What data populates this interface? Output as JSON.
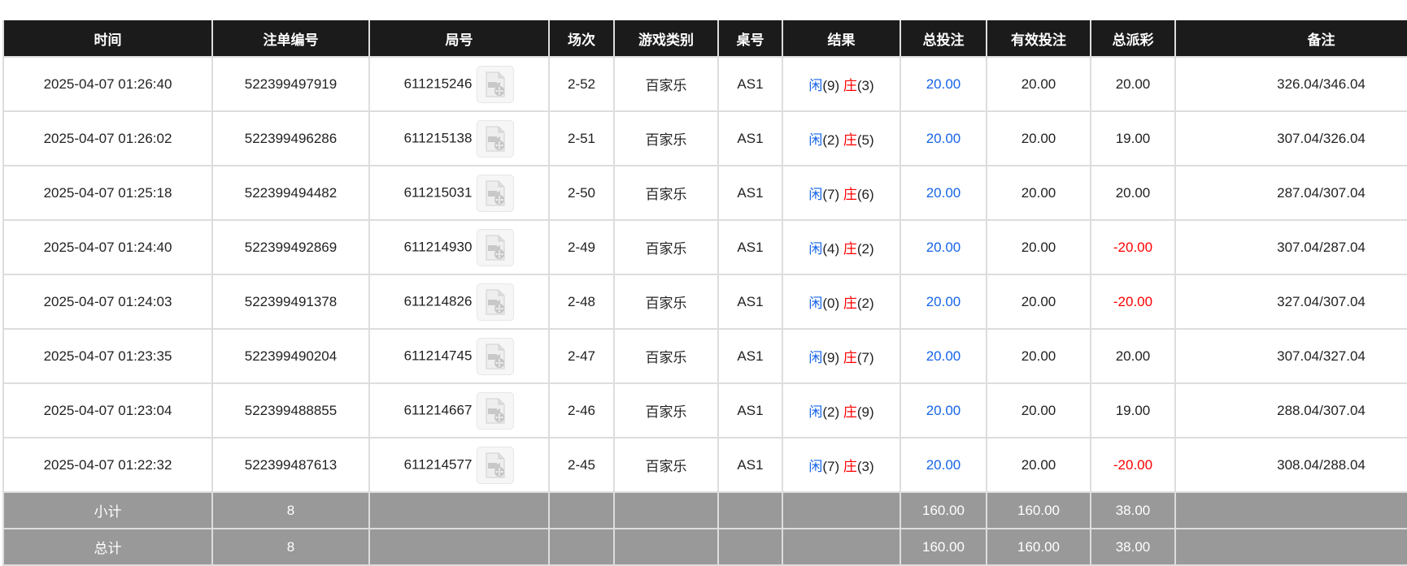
{
  "columns": [
    "时间",
    "注单编号",
    "局号",
    "场次",
    "游戏类别",
    "桌号",
    "结果",
    "总投注",
    "有效投注",
    "总派彩",
    "备注"
  ],
  "rows": [
    {
      "time": "2025-04-07 01:26:40",
      "bet_id": "522399497919",
      "round": "611215246",
      "shoe": "2-52",
      "game": "百家乐",
      "table": "AS1",
      "player_label": "闲",
      "player": "(9)",
      "banker_label": "庄",
      "banker": "(3)",
      "total_bet": "20.00",
      "valid_bet": "20.00",
      "payout": "20.00",
      "payout_negative": false,
      "remark": "326.04/346.04"
    },
    {
      "time": "2025-04-07 01:26:02",
      "bet_id": "522399496286",
      "round": "611215138",
      "shoe": "2-51",
      "game": "百家乐",
      "table": "AS1",
      "player_label": "闲",
      "player": "(2)",
      "banker_label": "庄",
      "banker": "(5)",
      "total_bet": "20.00",
      "valid_bet": "20.00",
      "payout": "19.00",
      "payout_negative": false,
      "remark": "307.04/326.04"
    },
    {
      "time": "2025-04-07 01:25:18",
      "bet_id": "522399494482",
      "round": "611215031",
      "shoe": "2-50",
      "game": "百家乐",
      "table": "AS1",
      "player_label": "闲",
      "player": "(7)",
      "banker_label": "庄",
      "banker": "(6)",
      "total_bet": "20.00",
      "valid_bet": "20.00",
      "payout": "20.00",
      "payout_negative": false,
      "remark": "287.04/307.04"
    },
    {
      "time": "2025-04-07 01:24:40",
      "bet_id": "522399492869",
      "round": "611214930",
      "shoe": "2-49",
      "game": "百家乐",
      "table": "AS1",
      "player_label": "闲",
      "player": "(4)",
      "banker_label": "庄",
      "banker": "(2)",
      "total_bet": "20.00",
      "valid_bet": "20.00",
      "payout": "-20.00",
      "payout_negative": true,
      "remark": "307.04/287.04"
    },
    {
      "time": "2025-04-07 01:24:03",
      "bet_id": "522399491378",
      "round": "611214826",
      "shoe": "2-48",
      "game": "百家乐",
      "table": "AS1",
      "player_label": "闲",
      "player": "(0)",
      "banker_label": "庄",
      "banker": "(2)",
      "total_bet": "20.00",
      "valid_bet": "20.00",
      "payout": "-20.00",
      "payout_negative": true,
      "remark": "327.04/307.04"
    },
    {
      "time": "2025-04-07 01:23:35",
      "bet_id": "522399490204",
      "round": "611214745",
      "shoe": "2-47",
      "game": "百家乐",
      "table": "AS1",
      "player_label": "闲",
      "player": "(9)",
      "banker_label": "庄",
      "banker": "(7)",
      "total_bet": "20.00",
      "valid_bet": "20.00",
      "payout": "20.00",
      "payout_negative": false,
      "remark": "307.04/327.04"
    },
    {
      "time": "2025-04-07 01:23:04",
      "bet_id": "522399488855",
      "round": "611214667",
      "shoe": "2-46",
      "game": "百家乐",
      "table": "AS1",
      "player_label": "闲",
      "player": "(2)",
      "banker_label": "庄",
      "banker": "(9)",
      "total_bet": "20.00",
      "valid_bet": "20.00",
      "payout": "19.00",
      "payout_negative": false,
      "remark": "288.04/307.04"
    },
    {
      "time": "2025-04-07 01:22:32",
      "bet_id": "522399487613",
      "round": "611214577",
      "shoe": "2-45",
      "game": "百家乐",
      "table": "AS1",
      "player_label": "闲",
      "player": "(7)",
      "banker_label": "庄",
      "banker": "(3)",
      "total_bet": "20.00",
      "valid_bet": "20.00",
      "payout": "-20.00",
      "payout_negative": true,
      "remark": "308.04/288.04"
    }
  ],
  "subtotal": {
    "label": "小计",
    "count": "8",
    "total_bet": "160.00",
    "valid_bet": "160.00",
    "payout": "38.00"
  },
  "total": {
    "label": "总计",
    "count": "8",
    "total_bet": "160.00",
    "valid_bet": "160.00",
    "payout": "38.00"
  },
  "colors": {
    "header_bg": "#1b1b1b",
    "summary_bg": "#999999",
    "player_blue": "#1665e8",
    "banker_red": "#ff0000"
  },
  "icons": {
    "replay": "video-file-icon"
  }
}
